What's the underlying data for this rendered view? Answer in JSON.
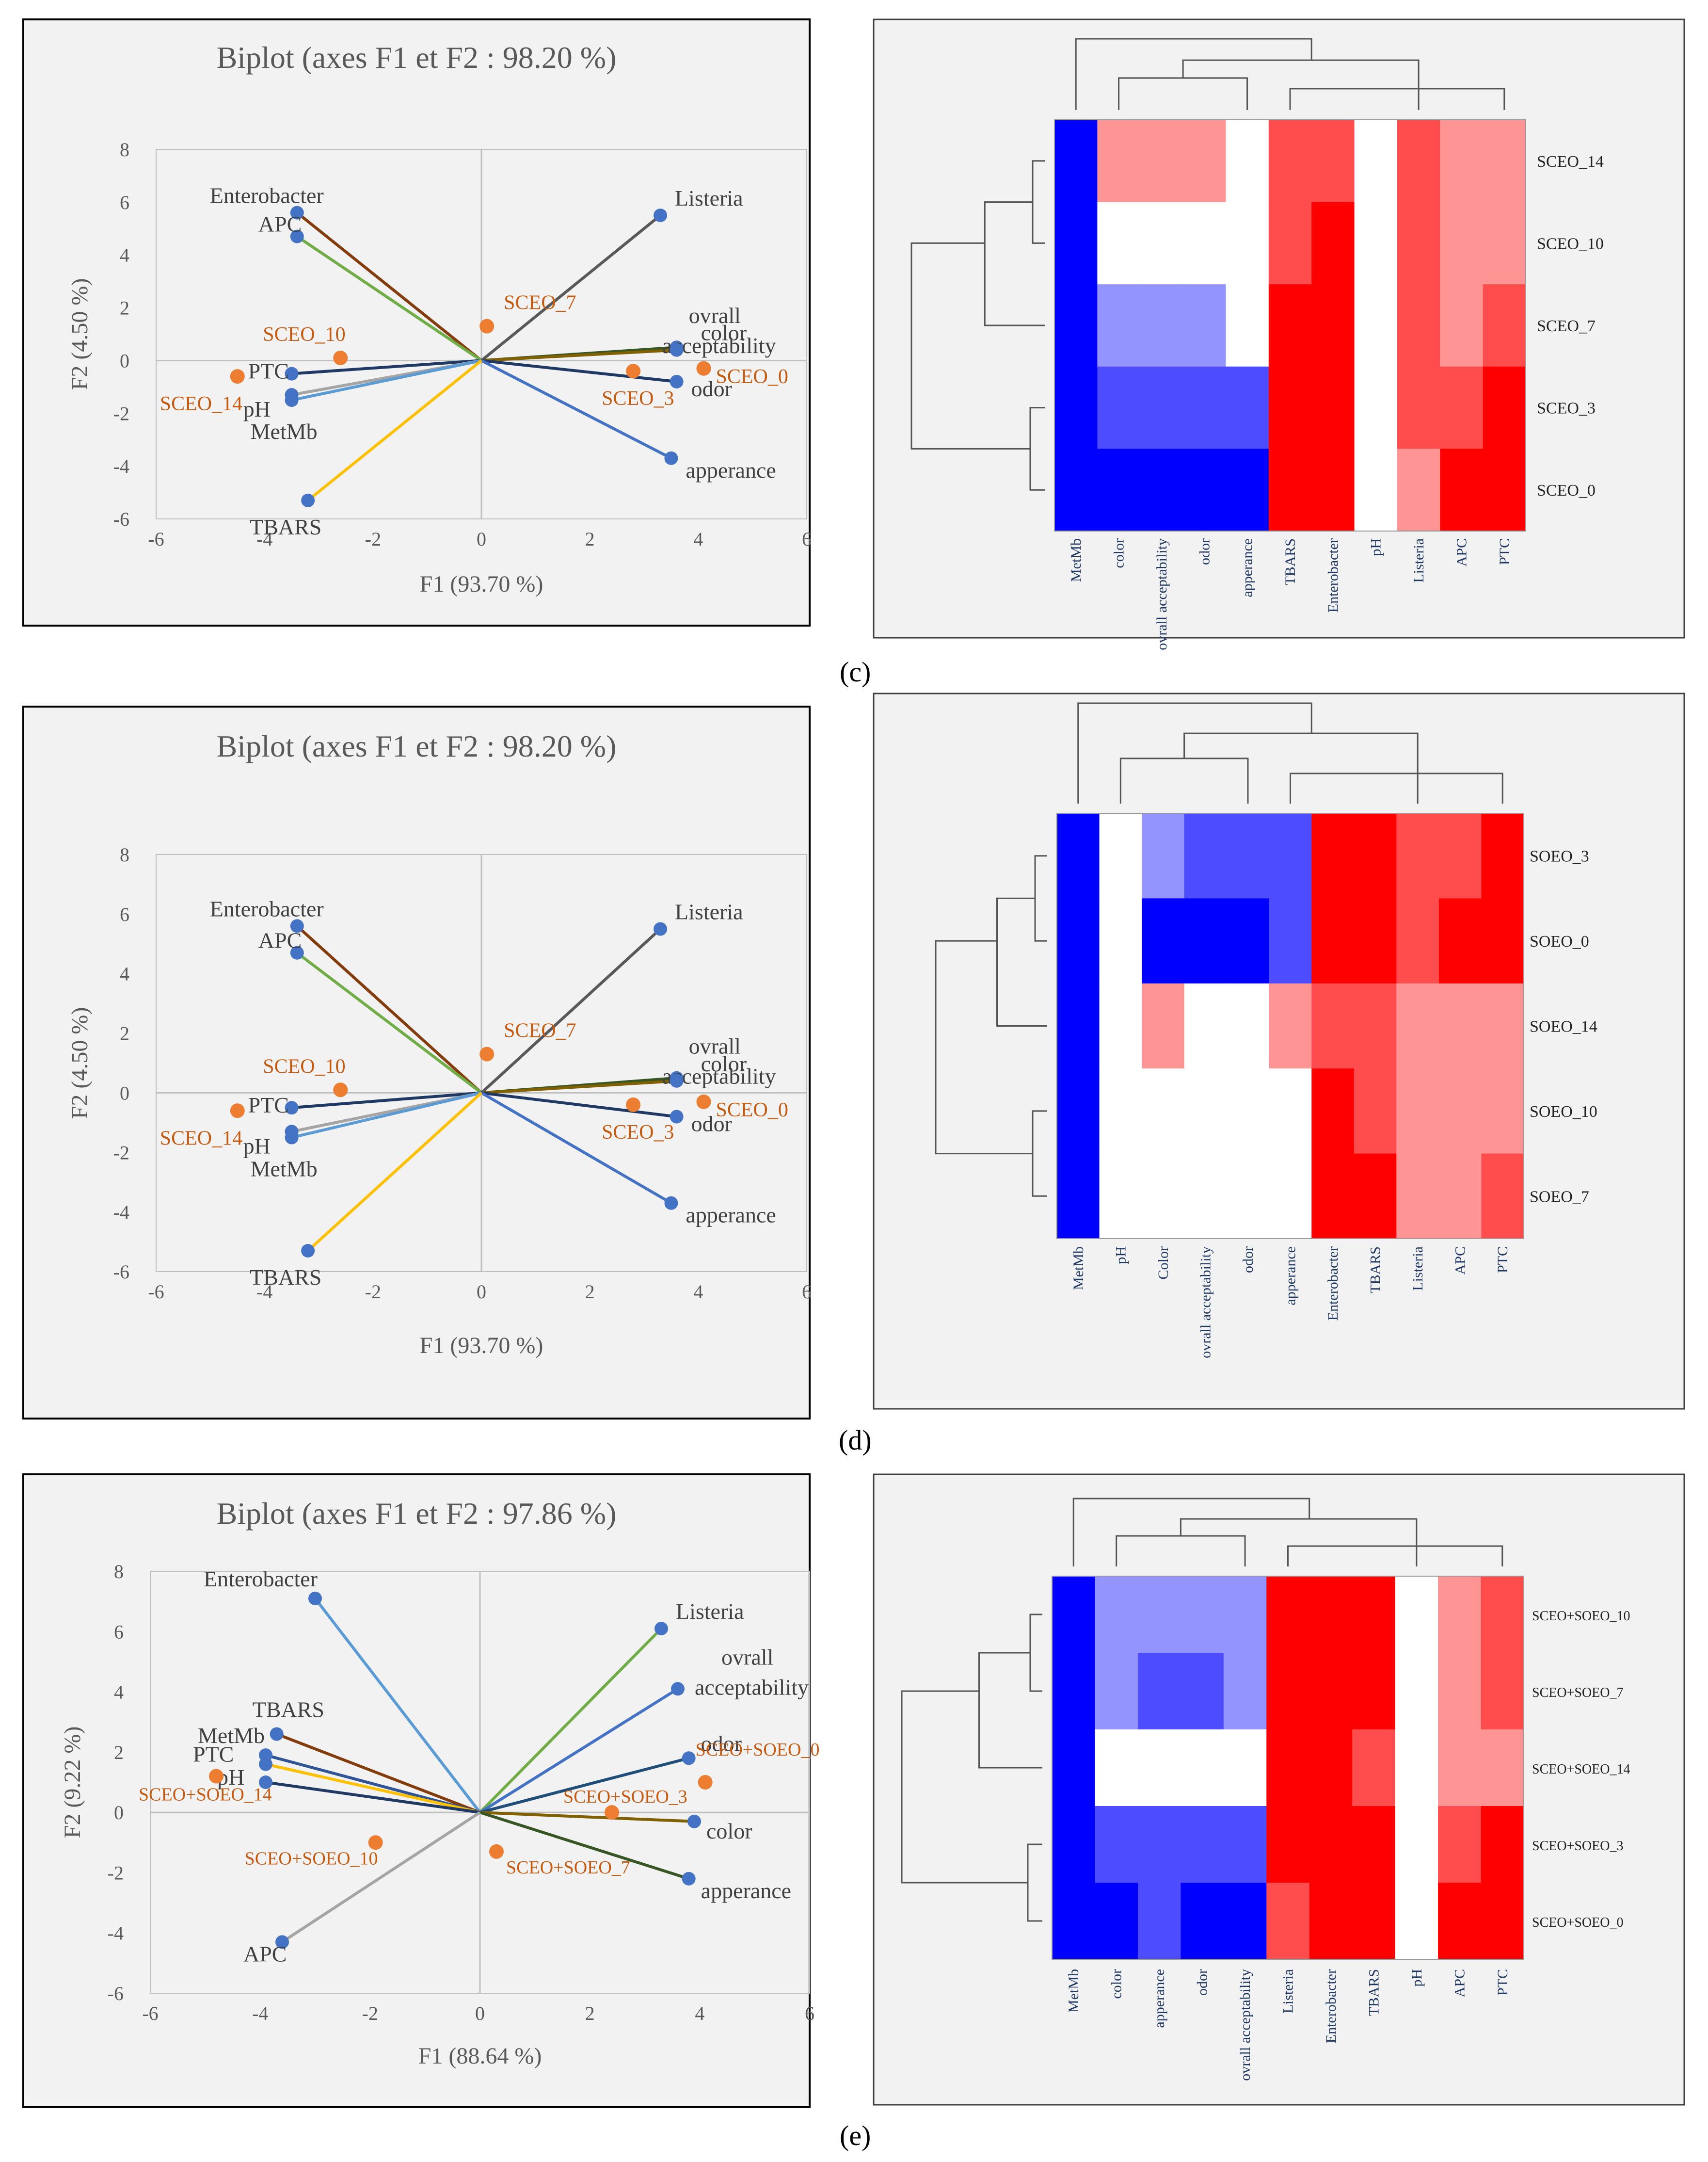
{
  "figure": {
    "panel_labels": [
      "(c)",
      "(d)",
      "(e)"
    ]
  },
  "colors": {
    "frame_bg": "#f2f2f2",
    "title": "#595959",
    "axis_text": "#595959",
    "variable_point": "#4472c4",
    "observation_point": "#ed7d31",
    "heat_blue": "#0000ff",
    "heat_red": "#ff0000"
  },
  "chart_data": [
    {
      "type": "scatter",
      "panel": "c",
      "title": "Biplot (axes F1 et F2 : 98.20 %)",
      "xlabel": "F1 (93.70 %)",
      "ylabel": "F2 (4.50 %)",
      "xlim": [
        -6,
        6
      ],
      "ylim": [
        -6,
        8
      ],
      "xticks": [
        -6,
        -4,
        -2,
        0,
        2,
        4,
        6
      ],
      "yticks": [
        -6,
        -4,
        -2,
        0,
        2,
        4,
        6,
        8
      ],
      "variables": [
        {
          "name": "Enterobacter",
          "x": -3.4,
          "y": 5.6,
          "color": "#843c0c"
        },
        {
          "name": "APC",
          "x": -3.4,
          "y": 4.7,
          "color": "#70ad47"
        },
        {
          "name": "Listeria",
          "x": 3.3,
          "y": 5.5,
          "color": "#595959"
        },
        {
          "name": "ovrall acceptability",
          "x": 3.6,
          "y": 0.5,
          "color": "#375623"
        },
        {
          "name": "color",
          "x": 3.6,
          "y": 0.4,
          "color": "#806000"
        },
        {
          "name": "odor",
          "x": 3.6,
          "y": -0.8,
          "color": "#203864"
        },
        {
          "name": "apperance",
          "x": 3.5,
          "y": -3.7,
          "color": "#4472c4"
        },
        {
          "name": "PTC",
          "x": -3.5,
          "y": -0.5,
          "color": "#203864"
        },
        {
          "name": "pH",
          "x": -3.5,
          "y": -1.3,
          "color": "#a5a5a5"
        },
        {
          "name": "MetMb",
          "x": -3.5,
          "y": -1.5,
          "color": "#5b9bd5"
        },
        {
          "name": "TBARS",
          "x": -3.2,
          "y": -5.3,
          "color": "#ffc000"
        }
      ],
      "observations": [
        {
          "name": "SCEO_7",
          "x": 0.1,
          "y": 1.3
        },
        {
          "name": "SCEO_10",
          "x": -2.6,
          "y": 0.1
        },
        {
          "name": "SCEO_14",
          "x": -4.5,
          "y": -0.6
        },
        {
          "name": "SCEO_3",
          "x": 2.8,
          "y": -0.4
        },
        {
          "name": "SCEO_0",
          "x": 4.1,
          "y": -0.3
        }
      ]
    },
    {
      "type": "heatmap",
      "panel": "c",
      "columns": [
        "MetMb",
        "color",
        "ovrall acceptability",
        "odor",
        "apperance",
        "TBARS",
        "Enterobacter",
        "pH",
        "Listeria",
        "APC",
        "PTC"
      ],
      "rows": [
        "SCEO_14",
        "SCEO_10",
        "SCEO_7",
        "SCEO_3",
        "SCEO_0"
      ],
      "values": [
        [
          -3,
          1,
          1,
          1,
          0,
          2,
          2,
          0,
          2,
          1,
          1
        ],
        [
          -3,
          0,
          0,
          0,
          0,
          2,
          3,
          0,
          2,
          1,
          1
        ],
        [
          -3,
          -1,
          -1,
          -1,
          0,
          3,
          3,
          0,
          2,
          1,
          2
        ],
        [
          -3,
          -2,
          -2,
          -2,
          -2,
          3,
          3,
          0,
          2,
          2,
          3
        ],
        [
          -3,
          -3,
          -3,
          -3,
          -3,
          3,
          3,
          0,
          1,
          3,
          3
        ]
      ]
    },
    {
      "type": "scatter",
      "panel": "d",
      "title": "Biplot (axes F1 et F2 : 98.20 %)",
      "xlabel": "F1 (93.70 %)",
      "ylabel": "F2 (4.50 %)",
      "xlim": [
        -6,
        6
      ],
      "ylim": [
        -6,
        8
      ],
      "xticks": [
        -6,
        -4,
        -2,
        0,
        2,
        4,
        6
      ],
      "yticks": [
        -6,
        -4,
        -2,
        0,
        2,
        4,
        6,
        8
      ],
      "variables": [
        {
          "name": "Enterobacter",
          "x": -3.4,
          "y": 5.6,
          "color": "#843c0c"
        },
        {
          "name": "APC",
          "x": -3.4,
          "y": 4.7,
          "color": "#70ad47"
        },
        {
          "name": "Listeria",
          "x": 3.3,
          "y": 5.5,
          "color": "#595959"
        },
        {
          "name": "ovrall acceptability",
          "x": 3.6,
          "y": 0.5,
          "color": "#375623"
        },
        {
          "name": "color",
          "x": 3.6,
          "y": 0.4,
          "color": "#806000"
        },
        {
          "name": "odor",
          "x": 3.6,
          "y": -0.8,
          "color": "#203864"
        },
        {
          "name": "apperance",
          "x": 3.5,
          "y": -3.7,
          "color": "#4472c4"
        },
        {
          "name": "PTC",
          "x": -3.5,
          "y": -0.5,
          "color": "#203864"
        },
        {
          "name": "pH",
          "x": -3.5,
          "y": -1.3,
          "color": "#a5a5a5"
        },
        {
          "name": "MetMb",
          "x": -3.5,
          "y": -1.5,
          "color": "#5b9bd5"
        },
        {
          "name": "TBARS",
          "x": -3.2,
          "y": -5.3,
          "color": "#ffc000"
        }
      ],
      "observations": [
        {
          "name": "SCEO_7",
          "x": 0.1,
          "y": 1.3
        },
        {
          "name": "SCEO_10",
          "x": -2.6,
          "y": 0.1
        },
        {
          "name": "SCEO_14",
          "x": -4.5,
          "y": -0.6
        },
        {
          "name": "SCEO_3",
          "x": 2.8,
          "y": -0.4
        },
        {
          "name": "SCEO_0",
          "x": 4.1,
          "y": -0.3
        }
      ]
    },
    {
      "type": "heatmap",
      "panel": "d",
      "columns": [
        "MetMb",
        "pH",
        "Color",
        "ovrall acceptability",
        "odor",
        "apperance",
        "Enterobacter",
        "TBARS",
        "Listeria",
        "APC",
        "PTC"
      ],
      "rows": [
        "SOEO_3",
        "SOEO_0",
        "SOEO_14",
        "SOEO_10",
        "SOEO_7"
      ],
      "values": [
        [
          -3,
          0,
          -1,
          -2,
          -2,
          -2,
          3,
          3,
          2,
          2,
          3
        ],
        [
          -3,
          0,
          -3,
          -3,
          -3,
          -2,
          3,
          3,
          2,
          3,
          3
        ],
        [
          -3,
          0,
          1,
          0,
          0,
          1,
          2,
          2,
          1,
          1,
          1
        ],
        [
          -3,
          0,
          0,
          0,
          0,
          0,
          3,
          2,
          1,
          1,
          1
        ],
        [
          -3,
          0,
          0,
          0,
          0,
          0,
          3,
          3,
          1,
          1,
          2
        ]
      ]
    },
    {
      "type": "scatter",
      "panel": "e",
      "title": "Biplot (axes F1 et F2 : 97.86 %)",
      "xlabel": "F1 (88.64 %)",
      "ylabel": "F2 (9.22 %)",
      "xlim": [
        -6,
        6
      ],
      "ylim": [
        -6,
        8
      ],
      "xticks": [
        -6,
        -4,
        -2,
        0,
        2,
        4,
        6
      ],
      "yticks": [
        -6,
        -4,
        -2,
        0,
        2,
        4,
        6,
        8
      ],
      "variables": [
        {
          "name": "Enterobacter",
          "x": -3.0,
          "y": 7.1,
          "color": "#5b9bd5"
        },
        {
          "name": "Listeria",
          "x": 3.3,
          "y": 6.1,
          "color": "#70ad47"
        },
        {
          "name": "ovrall acceptability",
          "x": 3.6,
          "y": 4.1,
          "color": "#4472c4"
        },
        {
          "name": "odor",
          "x": 3.8,
          "y": 1.8,
          "color": "#1f4e79"
        },
        {
          "name": "color",
          "x": 3.9,
          "y": -0.3,
          "color": "#806000"
        },
        {
          "name": "apperance",
          "x": 3.8,
          "y": -2.2,
          "color": "#375623"
        },
        {
          "name": "TBARS",
          "x": -3.7,
          "y": 2.6,
          "color": "#843c0c"
        },
        {
          "name": "MetMb",
          "x": -3.9,
          "y": 1.9,
          "color": "#2f5597"
        },
        {
          "name": "PTC",
          "x": -3.9,
          "y": 1.6,
          "color": "#ffc000"
        },
        {
          "name": "pH",
          "x": -3.9,
          "y": 1.0,
          "color": "#203864"
        },
        {
          "name": "APC",
          "x": -3.6,
          "y": -4.3,
          "color": "#a5a5a5"
        }
      ],
      "observations": [
        {
          "name": "SCEO+SOEO_14",
          "x": -4.8,
          "y": 1.2
        },
        {
          "name": "SCEO+SOEO_10",
          "x": -1.9,
          "y": -1.0
        },
        {
          "name": "SCEO+SOEO_7",
          "x": 0.3,
          "y": -1.3
        },
        {
          "name": "SCEO+SOEO_3",
          "x": 2.4,
          "y": 0.0
        },
        {
          "name": "SCEO+SOEO_0",
          "x": 4.1,
          "y": 1.0
        }
      ]
    },
    {
      "type": "heatmap",
      "panel": "e",
      "columns": [
        "MetMb",
        "color",
        "apperance",
        "odor",
        "ovrall acceptability",
        "Listeria",
        "Enterobacter",
        "TBARS",
        "pH",
        "APC",
        "PTC"
      ],
      "rows": [
        "SCEO+SOEO_10",
        "SCEO+SOEO_7",
        "SCEO+SOEO_14",
        "SCEO+SOEO_3",
        "SCEO+SOEO_0"
      ],
      "values": [
        [
          -3,
          -1,
          -1,
          -1,
          -1,
          3,
          3,
          3,
          0,
          1,
          2
        ],
        [
          -3,
          -1,
          -2,
          -2,
          -1,
          3,
          3,
          3,
          0,
          1,
          2
        ],
        [
          -3,
          0,
          0,
          0,
          0,
          3,
          3,
          2,
          0,
          1,
          1
        ],
        [
          -3,
          -2,
          -2,
          -2,
          -2,
          3,
          3,
          3,
          0,
          2,
          3
        ],
        [
          -3,
          -3,
          -2,
          -3,
          -3,
          2,
          3,
          3,
          0,
          3,
          3
        ]
      ]
    }
  ]
}
